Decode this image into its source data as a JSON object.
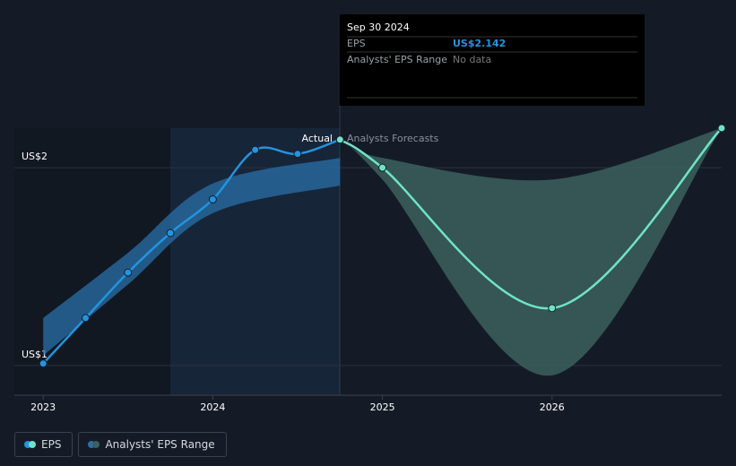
{
  "chart_data": {
    "type": "line",
    "xlim": [
      2022.83,
      2027
    ],
    "xticks": [
      2023,
      2024,
      2025,
      2026
    ],
    "ylim": [
      0.85,
      2.2
    ],
    "yticks": [
      {
        "value": 1,
        "label": "US$1"
      },
      {
        "value": 2,
        "label": "US$2"
      }
    ],
    "grid": true,
    "actual_label": "Actual",
    "forecast_label": "Analysts Forecasts",
    "series": [
      {
        "name": "EPS",
        "color": "#2394df",
        "x": [
          2023,
          2023.25,
          2023.5,
          2023.75,
          2024,
          2024.25,
          2024.5,
          2024.75
        ],
        "values": [
          1.01,
          1.24,
          1.47,
          1.67,
          1.84,
          2.09,
          2.07,
          2.142
        ],
        "forecast": {
          "color": "#6fe3c8",
          "x": [
            2024.75,
            2025,
            2026,
            2027
          ],
          "values": [
            2.142,
            2.0,
            1.29,
            2.2
          ]
        }
      },
      {
        "name": "Analysts' EPS Range",
        "color": "#2a6fa8",
        "x": [
          2023,
          2023.5,
          2024,
          2024.75
        ],
        "low": [
          1.05,
          1.41,
          1.77,
          1.91
        ],
        "high": [
          1.24,
          1.57,
          1.92,
          2.05
        ],
        "forecast": {
          "color": "#3b605d",
          "x": [
            2024.75,
            2025,
            2026,
            2027
          ],
          "low": [
            2.142,
            1.94,
            0.95,
            2.2
          ],
          "high": [
            2.142,
            2.05,
            1.94,
            2.2
          ]
        }
      }
    ],
    "tooltip": {
      "date": "Sep 30 2024",
      "rows": [
        {
          "label": "EPS",
          "value": "US$2.142"
        },
        {
          "label": "Analysts' EPS Range",
          "value": "No data"
        }
      ]
    }
  }
}
